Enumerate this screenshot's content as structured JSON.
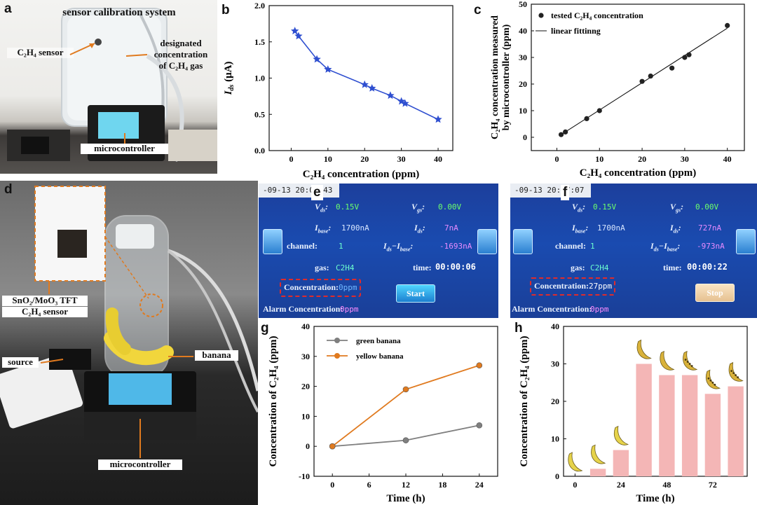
{
  "panels": {
    "a": {
      "label": "a",
      "title": "sensor calibration system",
      "sensor_label": "C₂H₄ sensor",
      "gas_label_1": "designated",
      "gas_label_2": "concentration",
      "gas_label_3": "of C₂H₄ gas",
      "controller_label": "microcontroller"
    },
    "b": {
      "label": "b"
    },
    "c": {
      "label": "c"
    },
    "d": {
      "label": "d",
      "sensor_label_1": "SnO₂/MoO₃ TFT",
      "sensor_label_2": "C₂H₄ sensor",
      "banana_label": "banana",
      "source_label": "source",
      "controller_label": "microcontroller"
    },
    "e": {
      "label": "e",
      "timestamp": "-09-13 20:06:43",
      "vds_label": "V",
      "vds_sub": "ds",
      "vds_value": "0.15V",
      "vgs_label": "V",
      "vgs_sub": "gs",
      "vgs_value": "0.00V",
      "ibase_label": "I",
      "ibase_sub": "base",
      "ibase_value": "1700nA",
      "ids_label": "I",
      "ids_sub": "ds",
      "ids_value": "7nA",
      "channel_label": "channel:",
      "channel_value": "1",
      "diff_label": "I",
      "diff_value": "-1693nA",
      "gas_label": "gas:",
      "gas_value": "C2H4",
      "time_label": "time:",
      "time_value": "00:00:06",
      "conc_label": "Concentration:",
      "conc_value": "0ppm",
      "alarm_label": "Alarm Concentration:",
      "alarm_value": "0ppm",
      "button": "Start"
    },
    "f": {
      "label": "f",
      "timestamp": "-09-13 20:07:07",
      "vds_label": "V",
      "vds_sub": "ds",
      "vds_value": "0.15V",
      "vgs_label": "V",
      "vgs_sub": "gs",
      "vgs_value": "0.00V",
      "ibase_label": "I",
      "ibase_sub": "base",
      "ibase_value": "1700nA",
      "ids_label": "I",
      "ids_sub": "ds",
      "ids_value": "727nA",
      "channel_label": "channel:",
      "channel_value": "1",
      "diff_label": "I",
      "diff_value": "-973nA",
      "gas_label": "gas:",
      "gas_value": "C2H4",
      "time_label": "time:",
      "time_value": "00:00:22",
      "conc_label": "Concentration:",
      "conc_value": "27ppm",
      "alarm_label": "Alarm Concentration:",
      "alarm_value": "0ppm",
      "button": "Stop"
    },
    "g": {
      "label": "g"
    },
    "h": {
      "label": "h"
    }
  },
  "chart_data": [
    {
      "id": "b",
      "type": "line",
      "xlabel": "C₂H₄ concentration (ppm)",
      "ylabel": "I",
      "ylabel_sub": "ds",
      "ylabel_unit": " (μA)",
      "xlim": [
        -6,
        44
      ],
      "ylim": [
        0,
        2
      ],
      "xticks": [
        0,
        10,
        20,
        30,
        40
      ],
      "yticks": [
        0.0,
        0.5,
        1.0,
        1.5,
        2.0
      ],
      "ytick_labels": [
        "0.0",
        "0.5",
        "1.0",
        "1.5",
        "2.0"
      ],
      "marker": "star",
      "color": "#2f4fd0",
      "x": [
        1,
        2,
        7,
        10,
        20,
        22,
        27,
        30,
        31,
        40
      ],
      "y": [
        1.65,
        1.58,
        1.26,
        1.12,
        0.91,
        0.86,
        0.76,
        0.68,
        0.65,
        0.43
      ]
    },
    {
      "id": "c",
      "type": "scatter",
      "xlabel": "C₂H₄ concentration (ppm)",
      "ylabel_1": "C₂H₄ concentration measured",
      "ylabel_2": "by microcontroller (ppm)",
      "xlim": [
        -6,
        44
      ],
      "ylim": [
        -5,
        50
      ],
      "xticks": [
        0,
        10,
        20,
        30,
        40
      ],
      "yticks": [
        0,
        10,
        20,
        30,
        40,
        50
      ],
      "legend_points": "tested C₂H₄ concentration",
      "legend_line": "linear fittinng",
      "legend_position": "top-left",
      "x": [
        1,
        2,
        7,
        10,
        20,
        22,
        27,
        30,
        31,
        40
      ],
      "y": [
        1,
        2,
        7,
        10,
        21,
        23,
        26,
        30,
        31,
        42
      ],
      "fit": {
        "x": [
          1,
          40
        ],
        "y": [
          1,
          41
        ]
      }
    },
    {
      "id": "g",
      "type": "line",
      "xlabel": "Time (h)",
      "ylabel": "Concentration of C₂H₄ (ppm)",
      "xlim": [
        -3,
        27
      ],
      "ylim": [
        -10,
        40
      ],
      "xticks": [
        0,
        6,
        12,
        18,
        24
      ],
      "yticks": [
        -10,
        0,
        10,
        20,
        30,
        40
      ],
      "legend_position": "top-left",
      "series": [
        {
          "name": "green banana",
          "color": "#7f7f7f",
          "x": [
            0,
            12,
            24
          ],
          "y": [
            0,
            2,
            7
          ]
        },
        {
          "name": "yellow banana",
          "color": "#e07a1f",
          "x": [
            0,
            12,
            24
          ],
          "y": [
            0,
            19,
            27
          ]
        }
      ]
    },
    {
      "id": "h",
      "type": "bar",
      "xlabel": "Time (h)",
      "ylabel": "Concentration of C₂H₄ (ppm)",
      "xlim": [
        -6,
        90
      ],
      "ylim": [
        0,
        40
      ],
      "xticks": [
        0,
        24,
        48,
        72
      ],
      "yticks": [
        0,
        10,
        20,
        30,
        40
      ],
      "bar_color": "#f4b6b6",
      "x": [
        0,
        12,
        24,
        36,
        48,
        60,
        72,
        84
      ],
      "values": [
        0,
        2,
        7,
        30,
        27,
        27,
        22,
        24
      ]
    }
  ]
}
